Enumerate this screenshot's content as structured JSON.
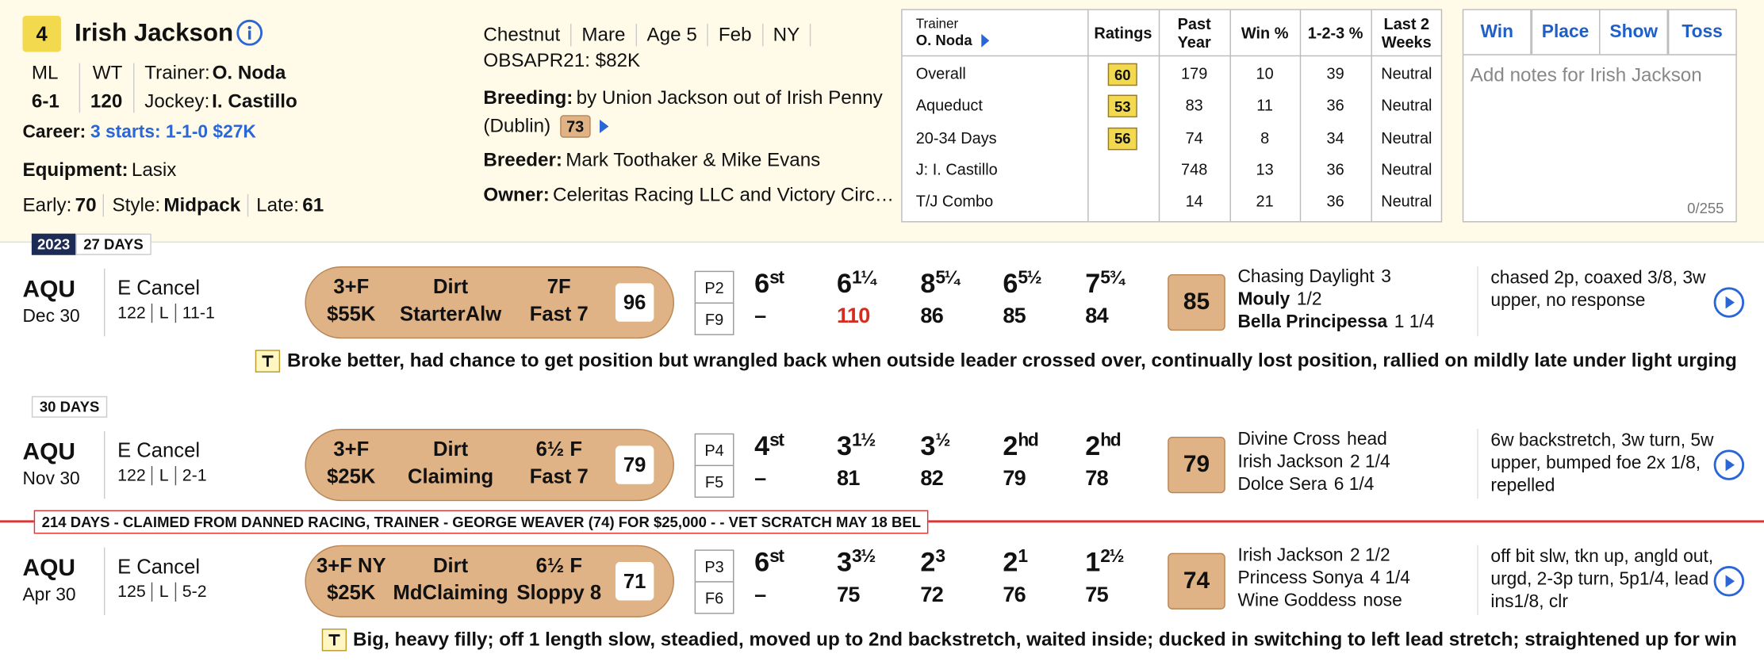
{
  "header": {
    "post": "4",
    "name": "Irish Jackson",
    "ml_label": "ML",
    "ml": "6-1",
    "wt_label": "WT",
    "wt": "120",
    "trainer_label": "Trainer:",
    "trainer": "O. Noda",
    "jockey_label": "Jockey:",
    "jockey": "I. Castillo",
    "career_label": "Career:",
    "career": "3 starts: 1-1-0 $27K",
    "equipment_label": "Equipment:",
    "equipment": "Lasix",
    "early_label": "Early:",
    "early": "70",
    "style_label": "Style:",
    "style": "Midpack",
    "late_label": "Late:",
    "late": "61"
  },
  "profile": {
    "tags": [
      "Chestnut",
      "Mare",
      "Age 5",
      "Feb",
      "NY"
    ],
    "sale": "OBSAPR21: $82K",
    "breeding_label": "Breeding:",
    "breeding": "by Union Jackson out of Irish Penny",
    "dam_sire": "(Dublin)",
    "breeding_rating": "73",
    "breeder_label": "Breeder:",
    "breeder": "Mark Toothaker & Mike Evans",
    "owner_label": "Owner:",
    "owner": "Celeritas Racing LLC and Victory Circ…"
  },
  "stats": {
    "trainer_label": "Trainer",
    "trainer": "O. Noda",
    "columns": [
      "Ratings",
      "Past Year",
      "Win %",
      "1-2-3 %",
      "Last 2 Weeks"
    ],
    "rows": [
      [
        "Overall",
        "60",
        "179",
        "10",
        "39",
        "Neutral"
      ],
      [
        "Aqueduct",
        "53",
        "83",
        "11",
        "36",
        "Neutral"
      ],
      [
        "20-34 Days",
        "56",
        "74",
        "8",
        "34",
        "Neutral"
      ],
      [
        "J: I. Castillo",
        null,
        "748",
        "13",
        "36",
        "Neutral"
      ],
      [
        "T/J Combo",
        null,
        "14",
        "21",
        "36",
        "Neutral"
      ]
    ]
  },
  "actions": {
    "buttons": [
      "Win",
      "Place",
      "Show",
      "Toss"
    ],
    "notes_placeholder": "Add notes for Irish Jackson",
    "notes_count": "0/255"
  },
  "races": [
    {
      "year": "2023",
      "days": "27 DAYS",
      "track": "AQU",
      "date": "Dec 30",
      "type": "E Cancel",
      "weight": "122",
      "med": "L",
      "odds": "11-1",
      "class": "3+F",
      "purse": "$55K",
      "surface": "Dirt",
      "race_type": "StarterAlw",
      "distance": "7F",
      "condition": "Fast 7",
      "speed": "96",
      "post": "P2",
      "field": "F9",
      "calls": [
        {
          "pos": "6",
          "len": "st",
          "fig": "–"
        },
        {
          "pos": "6",
          "len": "1¼",
          "fig": "110",
          "fig_color": "#d62b1f"
        },
        {
          "pos": "8",
          "len": "5¼",
          "fig": "86"
        },
        {
          "pos": "6",
          "len": "5½",
          "fig": "85"
        },
        {
          "pos": "7",
          "len": "5¾",
          "fig": "84"
        }
      ],
      "rating": "85",
      "finishers": [
        {
          "name": "Chasing Daylight",
          "margin": "3",
          "bold": false
        },
        {
          "name": "Mouly",
          "margin": "1/2",
          "bold": true
        },
        {
          "name": "Bella Principessa",
          "margin": "1 1/4",
          "bold": true
        }
      ],
      "comment": "chased 2p, coaxed 3/8, 3w upper, no response",
      "trip_note": "Broke better, had chance to get position but wrangled back when outside leader crossed over, continually lost position, rallied on mildly late under light urging"
    },
    {
      "days": "30 DAYS",
      "track": "AQU",
      "date": "Nov 30",
      "type": "E Cancel",
      "weight": "122",
      "med": "L",
      "odds": "2-1",
      "class": "3+F",
      "purse": "$25K",
      "surface": "Dirt",
      "race_type": "Claiming",
      "distance": "6½ F",
      "condition": "Fast 7",
      "speed": "79",
      "post": "P4",
      "field": "F5",
      "calls": [
        {
          "pos": "4",
          "len": "st",
          "fig": "–"
        },
        {
          "pos": "3",
          "len": "1½",
          "fig": "81"
        },
        {
          "pos": "3",
          "len": "½",
          "fig": "82"
        },
        {
          "pos": "2",
          "len": "hd",
          "fig": "79"
        },
        {
          "pos": "2",
          "len": "hd",
          "fig": "78"
        }
      ],
      "rating": "79",
      "finishers": [
        {
          "name": "Divine Cross",
          "margin": "head",
          "bold": false
        },
        {
          "name": "Irish Jackson",
          "margin": "2 1/4",
          "bold": false
        },
        {
          "name": "Dolce Sera",
          "margin": "6 1/4",
          "bold": false
        }
      ],
      "comment": "6w backstretch, 3w turn, 5w upper, bumped foe 2x 1/8, repelled"
    },
    {
      "claim_note": "214 DAYS - CLAIMED FROM DANNED RACING, TRAINER - GEORGE WEAVER (74) FOR $25,000 - - VET SCRATCH MAY 18 BEL",
      "track": "AQU",
      "date": "Apr 30",
      "type": "E Cancel",
      "weight": "125",
      "med": "L",
      "odds": "5-2",
      "class": "3+F NY",
      "purse": "$25K",
      "surface": "Dirt",
      "race_type": "MdClaiming",
      "distance": "6½ F",
      "condition": "Sloppy 8",
      "speed": "71",
      "post": "P3",
      "field": "F6",
      "calls": [
        {
          "pos": "6",
          "len": "st",
          "fig": "–"
        },
        {
          "pos": "3",
          "len": "3½",
          "fig": "75"
        },
        {
          "pos": "2",
          "len": "3",
          "fig": "72"
        },
        {
          "pos": "2",
          "len": "1",
          "fig": "76"
        },
        {
          "pos": "1",
          "len": "2½",
          "fig": "75"
        }
      ],
      "rating": "74",
      "finishers": [
        {
          "name": "Irish Jackson",
          "margin": "2 1/2",
          "bold": false
        },
        {
          "name": "Princess Sonya",
          "margin": "4 1/4",
          "bold": false
        },
        {
          "name": "Wine Goddess",
          "margin": "nose",
          "bold": false
        }
      ],
      "comment": "off bit slw, tkn up, angld out, urgd, 2-3p turn, 5p1/4, lead ins1/8, clr",
      "trip_note": "Big, heavy filly; off 1 length slow, steadied, moved up to 2nd backstretch, waited inside; ducked in switching to left lead stretch; straightened up for win"
    }
  ]
}
